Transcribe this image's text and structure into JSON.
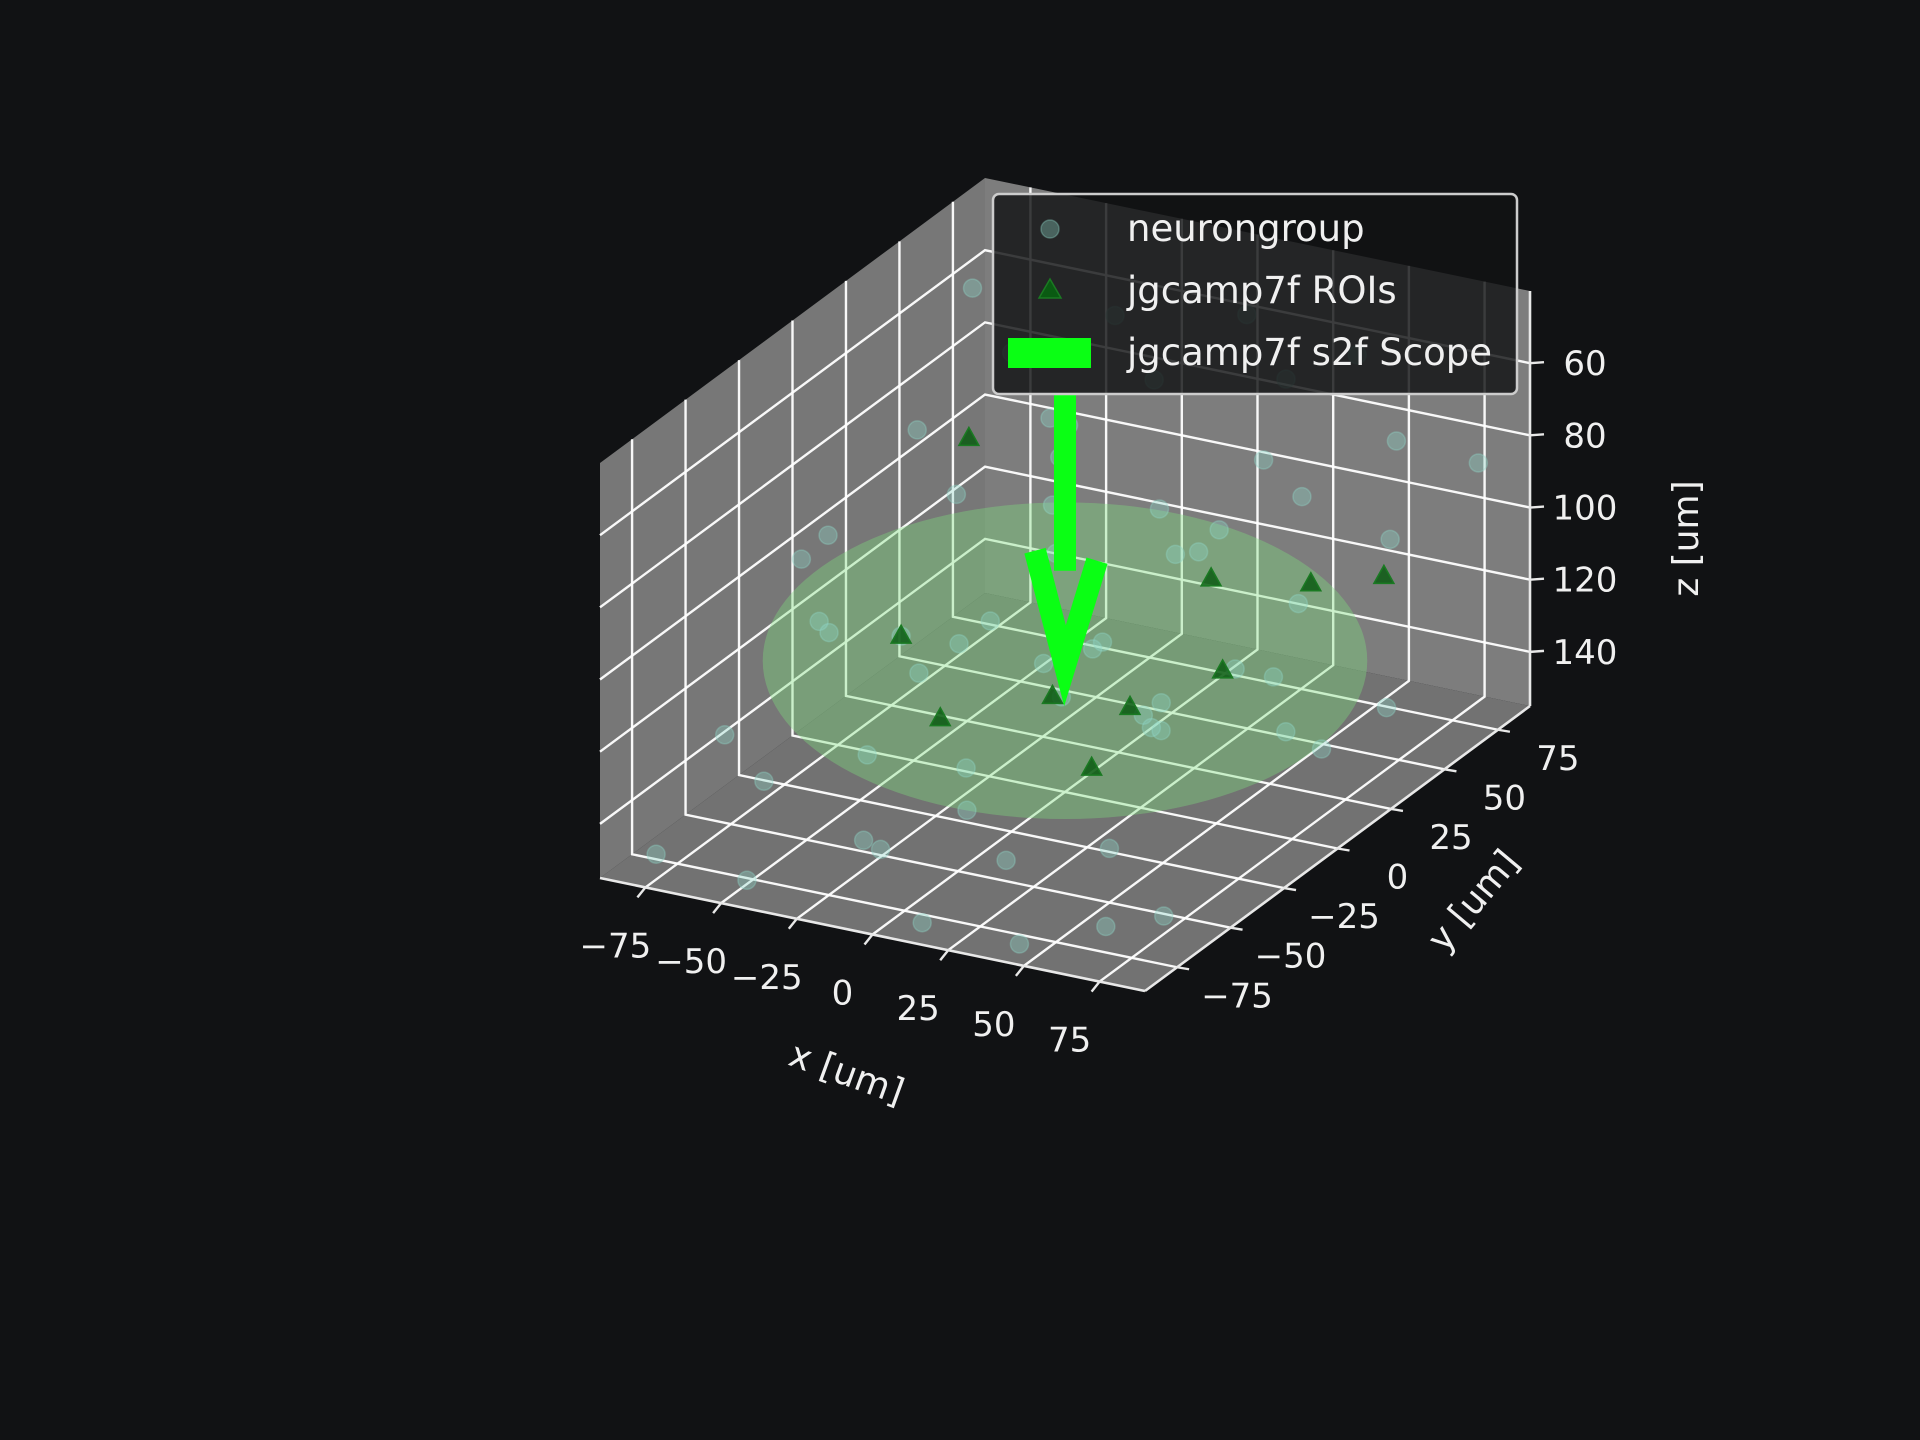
{
  "chart_data": {
    "type": "scatter3d",
    "xlabel": "x [um]",
    "ylabel": "y [um]",
    "zlabel": "z [um]",
    "xlim": [
      -90,
      90
    ],
    "ylim": [
      -90,
      90
    ],
    "zlim": [
      40,
      155
    ],
    "z_inverted": true,
    "xticks": [
      -75,
      -50,
      -25,
      0,
      25,
      50,
      75
    ],
    "yticks": [
      -75,
      -50,
      -25,
      0,
      25,
      50,
      75
    ],
    "zticks": [
      60,
      80,
      100,
      120,
      140
    ],
    "x_tick_labels": [
      "−75",
      "−50",
      "−25",
      "0",
      "25",
      "50",
      "75"
    ],
    "y_tick_labels": [
      "−75",
      "−50",
      "−25",
      "0",
      "25",
      "50",
      "75"
    ],
    "z_tick_labels": [
      "60",
      "80",
      "100",
      "120",
      "140"
    ],
    "grid": true,
    "legend_position": "upper-right",
    "colors": {
      "background": "#111214",
      "pane": "#808080",
      "neuron": "#8fd8c8",
      "roi": "#0a5a12",
      "scope": "#0aff14",
      "fov": "#7fe07f"
    },
    "series": [
      {
        "name": "neurongroup",
        "marker": "circle",
        "points": [
          [
            -80,
            70,
            60
          ],
          [
            -60,
            60,
            70
          ],
          [
            -40,
            80,
            65
          ],
          [
            -20,
            70,
            75
          ],
          [
            0,
            85,
            60
          ],
          [
            20,
            75,
            70
          ],
          [
            40,
            80,
            62
          ],
          [
            60,
            70,
            78
          ],
          [
            80,
            80,
            85
          ],
          [
            -70,
            30,
            80
          ],
          [
            -50,
            20,
            90
          ],
          [
            -30,
            40,
            85
          ],
          [
            -10,
            10,
            95
          ],
          [
            10,
            30,
            88
          ],
          [
            30,
            20,
            92
          ],
          [
            50,
            40,
            82
          ],
          [
            70,
            10,
            95
          ],
          [
            -80,
            -10,
            100
          ],
          [
            -60,
            -30,
            105
          ],
          [
            -40,
            -20,
            110
          ],
          [
            -20,
            -40,
            108
          ],
          [
            0,
            -10,
            115
          ],
          [
            20,
            -30,
            112
          ],
          [
            40,
            -20,
            118
          ],
          [
            60,
            -40,
            110
          ],
          [
            80,
            -10,
            120
          ],
          [
            -70,
            -60,
            125
          ],
          [
            -50,
            -70,
            130
          ],
          [
            -30,
            -50,
            128
          ],
          [
            -10,
            -80,
            135
          ],
          [
            10,
            -60,
            132
          ],
          [
            30,
            -70,
            138
          ],
          [
            50,
            -50,
            140
          ],
          [
            70,
            -80,
            145
          ],
          [
            -60,
            50,
            140
          ],
          [
            -30,
            60,
            145
          ],
          [
            0,
            45,
            150
          ],
          [
            30,
            55,
            142
          ],
          [
            60,
            35,
            148
          ],
          [
            -75,
            -85,
            148
          ],
          [
            -45,
            -85,
            150
          ],
          [
            -15,
            -65,
            145
          ],
          [
            15,
            -88,
            150
          ],
          [
            45,
            -85,
            152
          ],
          [
            75,
            -60,
            150
          ],
          [
            -85,
            10,
            130
          ],
          [
            85,
            30,
            130
          ],
          [
            -5,
            20,
            125
          ],
          [
            25,
            5,
            135
          ],
          [
            -35,
            0,
            120
          ],
          [
            5,
            65,
            110
          ],
          [
            -65,
            85,
            100
          ],
          [
            65,
            60,
            100
          ],
          [
            40,
            -5,
            80
          ],
          [
            -20,
            30,
            70
          ],
          [
            10,
            -20,
            65
          ],
          [
            -50,
            -40,
            75
          ],
          [
            55,
            15,
            60
          ],
          [
            -15,
            -25,
            140
          ],
          [
            35,
            30,
            128
          ]
        ]
      },
      {
        "name": "jgcamp7f ROIs",
        "marker": "triangle",
        "points": [
          [
            -40,
            -20,
            110
          ],
          [
            -20,
            -30,
            125
          ],
          [
            10,
            -20,
            118
          ],
          [
            25,
            -5,
            125
          ],
          [
            30,
            -30,
            130
          ],
          [
            45,
            10,
            118
          ],
          [
            20,
            40,
            110
          ],
          [
            60,
            30,
            100
          ],
          [
            -60,
            40,
            85
          ],
          [
            70,
            50,
            105
          ]
        ]
      },
      {
        "name": "jgcamp7f s2f Scope",
        "marker": "arrow",
        "start": [
          0,
          0,
          45
        ],
        "end": [
          0,
          0,
          120
        ],
        "fov_radius": 85
      }
    ]
  }
}
